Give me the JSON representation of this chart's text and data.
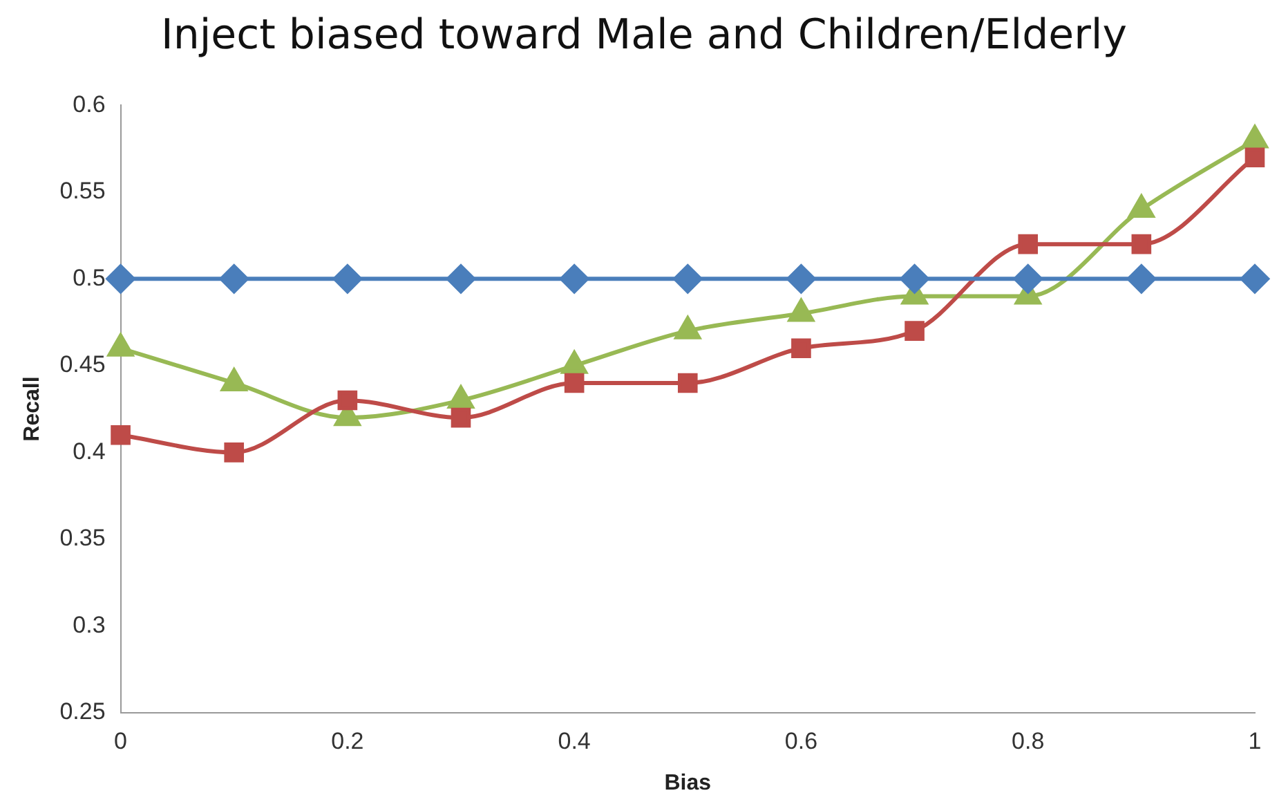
{
  "chart_data": {
    "type": "line",
    "title": "Inject biased toward Male and Children/Elderly",
    "xlabel": "Bias",
    "ylabel": "Recall",
    "x": [
      0,
      0.1,
      0.2,
      0.3,
      0.4,
      0.5,
      0.6,
      0.7,
      0.8,
      0.9,
      1
    ],
    "series": [
      {
        "color": "#4a7ebb",
        "marker": "diamond",
        "values": [
          0.5,
          0.5,
          0.5,
          0.5,
          0.5,
          0.5,
          0.5,
          0.5,
          0.5,
          0.5,
          0.5
        ]
      },
      {
        "color": "#be4b48",
        "marker": "square",
        "values": [
          0.41,
          0.4,
          0.43,
          0.42,
          0.44,
          0.44,
          0.46,
          0.47,
          0.52,
          0.52,
          0.57
        ]
      },
      {
        "color": "#98b954",
        "marker": "triangle",
        "values": [
          0.46,
          0.44,
          0.42,
          0.43,
          0.45,
          0.47,
          0.48,
          0.49,
          0.49,
          0.54,
          0.58
        ]
      }
    ],
    "xlim": [
      0,
      1
    ],
    "xticks": [
      0,
      0.2,
      0.4,
      0.6,
      0.8,
      1
    ],
    "ylim": [
      0.25,
      0.6
    ],
    "yticks": [
      0.25,
      0.3,
      0.35,
      0.4,
      0.45,
      0.5,
      0.55,
      0.6
    ],
    "grid": false,
    "legend": false,
    "line_style": "solid"
  }
}
